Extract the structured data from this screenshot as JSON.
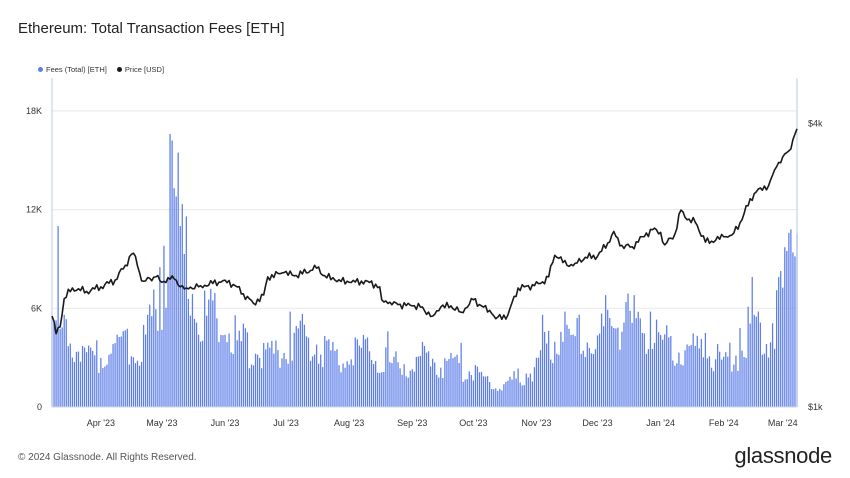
{
  "title": "Ethereum: Total Transaction Fees [ETH]",
  "footer": "© 2024 Glassnode. All Rights Reserved.",
  "brand": "glassnode",
  "colors": {
    "fees": "#5d7ee8",
    "price": "#1a1a1a",
    "grid": "#e8e8e8",
    "axis": "#b9cbe6"
  },
  "chart_data": {
    "type": "bar",
    "title": "Ethereum: Total Transaction Fees [ETH]",
    "legend_position": "top-left",
    "grid": true,
    "x_range": [
      "2023-03-08",
      "2024-03-08"
    ],
    "x_tick_dates": [
      "2023-04-01",
      "2023-05-01",
      "2023-06-01",
      "2023-07-01",
      "2023-08-01",
      "2023-09-01",
      "2023-10-01",
      "2023-11-01",
      "2023-12-01",
      "2024-01-01",
      "2024-02-01",
      "2024-03-01"
    ],
    "x_tick_labels": [
      "Apr '23",
      "May '23",
      "Jun '23",
      "Jul '23",
      "Aug '23",
      "Sep '23",
      "Oct '23",
      "Nov '23",
      "Dec '23",
      "Jan '24",
      "Feb '24",
      "Mar '24"
    ],
    "y_left": {
      "range": [
        0,
        20000
      ],
      "ticks": [
        0,
        6000,
        12000,
        18000
      ],
      "tick_labels": [
        "0",
        "6K",
        "12K",
        "18K"
      ]
    },
    "y_right": {
      "scale": "log",
      "range": [
        1000,
        5000
      ],
      "ticks": [
        1000,
        4000
      ],
      "tick_labels": [
        "$1k",
        "$4k"
      ]
    },
    "series": [
      {
        "name": "Fees (Total) [ETH]",
        "type": "bar",
        "axis": "left",
        "anchors": [
          [
            "2023-03-08",
            4000
          ],
          [
            "2023-03-10",
            3500
          ],
          [
            "2023-03-11",
            11000
          ],
          [
            "2023-03-12",
            3800
          ],
          [
            "2023-03-18",
            3200
          ],
          [
            "2023-03-25",
            2300
          ],
          [
            "2023-04-01",
            2500
          ],
          [
            "2023-04-08",
            3000
          ],
          [
            "2023-04-15",
            3200
          ],
          [
            "2023-04-20",
            3000
          ],
          [
            "2023-04-25",
            4000
          ],
          [
            "2023-04-28",
            4500
          ],
          [
            "2023-05-01",
            5000
          ],
          [
            "2023-05-04",
            8500
          ],
          [
            "2023-05-05",
            16500
          ],
          [
            "2023-05-07",
            13000
          ],
          [
            "2023-05-09",
            11000
          ],
          [
            "2023-05-11",
            9000
          ],
          [
            "2023-05-15",
            6000
          ],
          [
            "2023-05-22",
            4500
          ],
          [
            "2023-06-01",
            4000
          ],
          [
            "2023-06-08",
            3200
          ],
          [
            "2023-06-15",
            2700
          ],
          [
            "2023-06-22",
            2500
          ],
          [
            "2023-07-01",
            2800
          ],
          [
            "2023-07-08",
            3500
          ],
          [
            "2023-07-15",
            3200
          ],
          [
            "2023-07-22",
            2700
          ],
          [
            "2023-08-01",
            2600
          ],
          [
            "2023-08-08",
            3000
          ],
          [
            "2023-08-15",
            2500
          ],
          [
            "2023-08-22",
            2000
          ],
          [
            "2023-09-01",
            2300
          ],
          [
            "2023-09-08",
            2600
          ],
          [
            "2023-09-15",
            2200
          ],
          [
            "2023-09-22",
            2000
          ],
          [
            "2023-10-01",
            1800
          ],
          [
            "2023-10-08",
            1200
          ],
          [
            "2023-10-15",
            1100
          ],
          [
            "2023-10-22",
            1400
          ],
          [
            "2023-10-29",
            1800
          ],
          [
            "2023-11-05",
            2800
          ],
          [
            "2023-11-12",
            3800
          ],
          [
            "2023-11-19",
            3500
          ],
          [
            "2023-11-26",
            3300
          ],
          [
            "2023-12-01",
            3500
          ],
          [
            "2023-12-08",
            4500
          ],
          [
            "2023-12-15",
            4200
          ],
          [
            "2023-12-22",
            3900
          ],
          [
            "2024-01-01",
            3200
          ],
          [
            "2024-01-08",
            2800
          ],
          [
            "2024-01-15",
            3000
          ],
          [
            "2024-01-22",
            2800
          ],
          [
            "2024-02-01",
            2300
          ],
          [
            "2024-02-08",
            2800
          ],
          [
            "2024-02-15",
            4000
          ],
          [
            "2024-02-22",
            3500
          ],
          [
            "2024-03-01",
            5500
          ],
          [
            "2024-03-04",
            7000
          ],
          [
            "2024-03-06",
            10500
          ],
          [
            "2024-03-08",
            9000
          ]
        ],
        "spikes": [
          [
            "2023-03-11",
            11000
          ],
          [
            "2023-05-05",
            16600
          ],
          [
            "2023-05-06",
            16200
          ],
          [
            "2023-05-07",
            13300
          ],
          [
            "2023-05-08",
            12800
          ],
          [
            "2023-05-10",
            11000
          ],
          [
            "2023-05-12",
            9300
          ],
          [
            "2023-04-30",
            8500
          ],
          [
            "2023-05-02",
            9800
          ],
          [
            "2023-07-03",
            5800
          ],
          [
            "2023-07-10",
            5000
          ],
          [
            "2023-08-20",
            4600
          ],
          [
            "2023-09-25",
            3900
          ],
          [
            "2023-11-04",
            5600
          ],
          [
            "2023-11-15",
            5800
          ],
          [
            "2023-11-21",
            5400
          ],
          [
            "2023-12-05",
            6800
          ],
          [
            "2023-12-16",
            6900
          ],
          [
            "2023-12-19",
            6800
          ],
          [
            "2023-12-27",
            5800
          ],
          [
            "2024-01-23",
            4500
          ],
          [
            "2024-02-09",
            4800
          ],
          [
            "2024-02-13",
            6100
          ],
          [
            "2024-02-15",
            7900
          ],
          [
            "2024-02-17",
            5500
          ],
          [
            "2024-02-27",
            7100
          ],
          [
            "2024-02-28",
            7900
          ],
          [
            "2024-03-05",
            10800
          ],
          [
            "2024-03-06",
            9400
          ]
        ]
      },
      {
        "name": "Price [USD]",
        "type": "line",
        "axis": "right",
        "points": [
          [
            "2023-03-08",
            1560
          ],
          [
            "2023-03-10",
            1430
          ],
          [
            "2023-03-12",
            1480
          ],
          [
            "2023-03-14",
            1700
          ],
          [
            "2023-03-18",
            1790
          ],
          [
            "2023-03-25",
            1760
          ],
          [
            "2023-04-01",
            1800
          ],
          [
            "2023-04-08",
            1860
          ],
          [
            "2023-04-13",
            2000
          ],
          [
            "2023-04-16",
            2110
          ],
          [
            "2023-04-18",
            2090
          ],
          [
            "2023-04-20",
            1930
          ],
          [
            "2023-04-22",
            1850
          ],
          [
            "2023-04-28",
            1890
          ],
          [
            "2023-05-01",
            1840
          ],
          [
            "2023-05-06",
            1900
          ],
          [
            "2023-05-10",
            1800
          ],
          [
            "2023-05-13",
            1790
          ],
          [
            "2023-05-20",
            1810
          ],
          [
            "2023-05-26",
            1830
          ],
          [
            "2023-06-01",
            1860
          ],
          [
            "2023-06-06",
            1810
          ],
          [
            "2023-06-10",
            1740
          ],
          [
            "2023-06-15",
            1660
          ],
          [
            "2023-06-20",
            1730
          ],
          [
            "2023-06-22",
            1890
          ],
          [
            "2023-06-30",
            1930
          ],
          [
            "2023-07-05",
            1900
          ],
          [
            "2023-07-13",
            1950
          ],
          [
            "2023-07-15",
            2000
          ],
          [
            "2023-07-20",
            1900
          ],
          [
            "2023-07-25",
            1860
          ],
          [
            "2023-08-01",
            1840
          ],
          [
            "2023-08-10",
            1850
          ],
          [
            "2023-08-16",
            1800
          ],
          [
            "2023-08-17",
            1690
          ],
          [
            "2023-08-20",
            1660
          ],
          [
            "2023-08-25",
            1650
          ],
          [
            "2023-09-01",
            1640
          ],
          [
            "2023-09-05",
            1630
          ],
          [
            "2023-09-11",
            1560
          ],
          [
            "2023-09-15",
            1630
          ],
          [
            "2023-09-20",
            1640
          ],
          [
            "2023-09-25",
            1590
          ],
          [
            "2023-10-01",
            1690
          ],
          [
            "2023-10-05",
            1640
          ],
          [
            "2023-10-10",
            1580
          ],
          [
            "2023-10-12",
            1540
          ],
          [
            "2023-10-18",
            1570
          ],
          [
            "2023-10-23",
            1790
          ],
          [
            "2023-10-26",
            1800
          ],
          [
            "2023-10-31",
            1810
          ],
          [
            "2023-11-03",
            1830
          ],
          [
            "2023-11-07",
            1890
          ],
          [
            "2023-11-10",
            2100
          ],
          [
            "2023-11-12",
            2070
          ],
          [
            "2023-11-16",
            2000
          ],
          [
            "2023-11-20",
            2020
          ],
          [
            "2023-11-25",
            2080
          ],
          [
            "2023-12-01",
            2090
          ],
          [
            "2023-12-06",
            2230
          ],
          [
            "2023-12-09",
            2360
          ],
          [
            "2023-12-12",
            2200
          ],
          [
            "2023-12-18",
            2190
          ],
          [
            "2023-12-23",
            2300
          ],
          [
            "2023-12-28",
            2380
          ],
          [
            "2024-01-01",
            2350
          ],
          [
            "2024-01-03",
            2210
          ],
          [
            "2024-01-08",
            2330
          ],
          [
            "2024-01-11",
            2620
          ],
          [
            "2024-01-14",
            2500
          ],
          [
            "2024-01-18",
            2470
          ],
          [
            "2024-01-23",
            2240
          ],
          [
            "2024-01-28",
            2260
          ],
          [
            "2024-02-01",
            2300
          ],
          [
            "2024-02-05",
            2320
          ],
          [
            "2024-02-10",
            2500
          ],
          [
            "2024-02-14",
            2770
          ],
          [
            "2024-02-19",
            2920
          ],
          [
            "2024-02-23",
            2950
          ],
          [
            "2024-02-27",
            3240
          ],
          [
            "2024-03-01",
            3400
          ],
          [
            "2024-03-04",
            3500
          ],
          [
            "2024-03-06",
            3700
          ],
          [
            "2024-03-07",
            3800
          ],
          [
            "2024-03-08",
            3900
          ]
        ]
      }
    ]
  }
}
